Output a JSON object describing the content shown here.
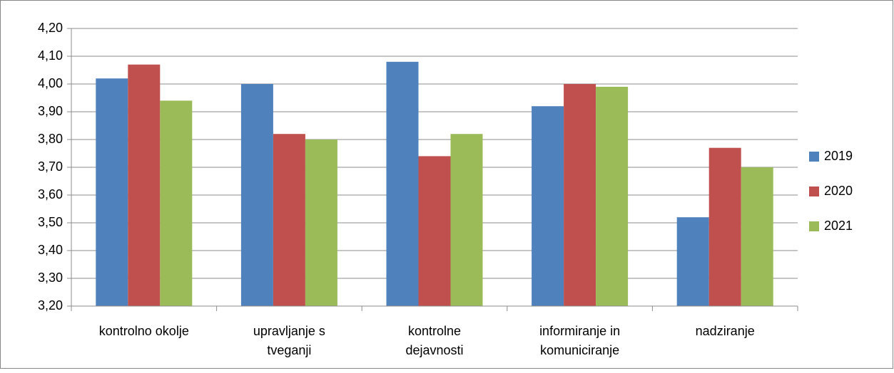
{
  "chart_data": {
    "type": "bar",
    "categories": [
      [
        "kontrolno okolje"
      ],
      [
        "upravljanje s",
        "tveganji"
      ],
      [
        "kontrolne",
        "dejavnosti"
      ],
      [
        "informiranje in",
        "komuniciranje"
      ],
      [
        "nadziranje"
      ]
    ],
    "series": [
      {
        "name": "2019",
        "color": "#4f81bd",
        "values": [
          4.02,
          4.0,
          4.08,
          3.92,
          3.52
        ]
      },
      {
        "name": "2020",
        "color": "#c0504d",
        "values": [
          4.07,
          3.82,
          3.74,
          4.0,
          3.77
        ]
      },
      {
        "name": "2021",
        "color": "#9bbb59",
        "values": [
          3.94,
          3.8,
          3.82,
          3.99,
          3.7
        ]
      }
    ],
    "ylim": [
      3.2,
      4.2
    ],
    "yticks": [
      {
        "value": 3.2,
        "label": "3,20"
      },
      {
        "value": 3.3,
        "label": "3,30"
      },
      {
        "value": 3.4,
        "label": "3,40"
      },
      {
        "value": 3.5,
        "label": "3,50"
      },
      {
        "value": 3.6,
        "label": "3,60"
      },
      {
        "value": 3.7,
        "label": "3,70"
      },
      {
        "value": 3.8,
        "label": "3,80"
      },
      {
        "value": 3.9,
        "label": "3,90"
      },
      {
        "value": 4.0,
        "label": "4,00"
      },
      {
        "value": 4.1,
        "label": "4,10"
      },
      {
        "value": 4.2,
        "label": "4,20"
      }
    ],
    "grid": true,
    "legend": "right"
  }
}
